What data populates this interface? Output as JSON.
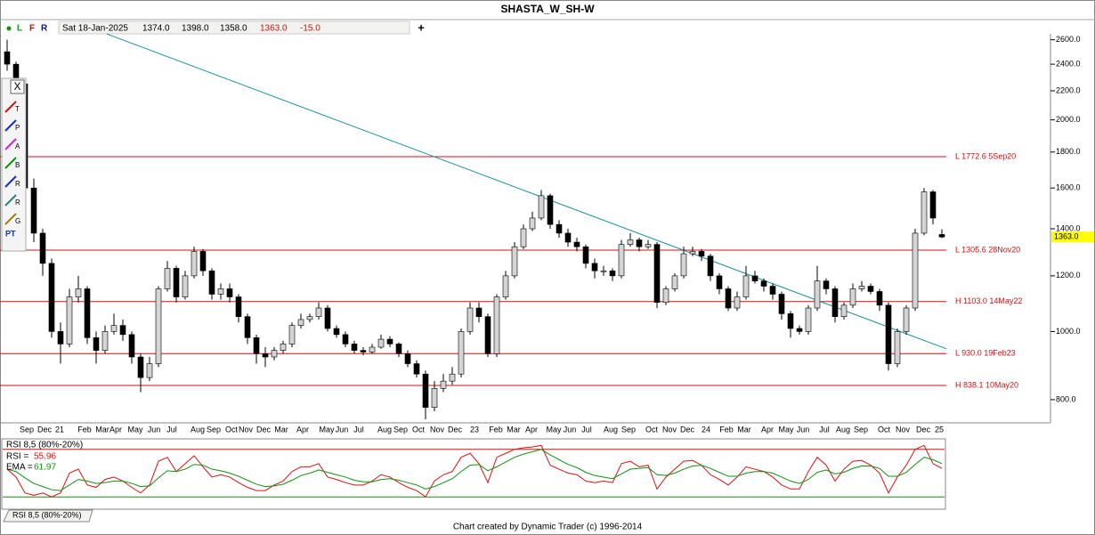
{
  "header": {
    "title": "SHASTA_W_SH-W",
    "buttons": [
      "L",
      "F",
      "R"
    ],
    "plus": "+",
    "info": {
      "date": "Sat 18-Jan-2025",
      "open": "1374.0",
      "high": "1398.0",
      "low": "1358.0",
      "close": "1363.0",
      "change": "-15.0"
    }
  },
  "tools": {
    "close": "X",
    "labels": [
      "T",
      "P",
      "A",
      "B",
      "R",
      "R",
      "G",
      "PT"
    ]
  },
  "chart_data": {
    "type": "candlestick",
    "log_scale": true,
    "xlim": [
      0,
      105
    ],
    "ylim": [
      748,
      2651
    ],
    "yticks": [
      {
        "value": 800,
        "label": "800.0"
      },
      {
        "value": 1000,
        "label": "1000.0"
      },
      {
        "value": 1200,
        "label": "1200.0"
      },
      {
        "value": 1400,
        "label": "1400.0"
      },
      {
        "value": 1600,
        "label": "1600.0"
      },
      {
        "value": 1800,
        "label": "1800.0"
      },
      {
        "value": 2000,
        "label": "2000.0"
      },
      {
        "value": 2200,
        "label": "2200.0"
      },
      {
        "value": 2400,
        "label": "2400.0"
      },
      {
        "value": 2600,
        "label": "2600.0"
      }
    ],
    "xticks": [
      {
        "value": 2.2,
        "label": "Sep"
      },
      {
        "value": 4.2,
        "label": "Dec"
      },
      {
        "value": 5.9,
        "label": "21"
      },
      {
        "value": 8.7,
        "label": "Feb"
      },
      {
        "value": 10.7,
        "label": "Mar"
      },
      {
        "value": 12.2,
        "label": "Apr"
      },
      {
        "value": 14.4,
        "label": "May"
      },
      {
        "value": 16.5,
        "label": "Jun"
      },
      {
        "value": 18.5,
        "label": "Jul"
      },
      {
        "value": 21.4,
        "label": "Aug"
      },
      {
        "value": 23.2,
        "label": "Sep"
      },
      {
        "value": 25.2,
        "label": "Oct"
      },
      {
        "value": 26.8,
        "label": "Nov"
      },
      {
        "value": 28.8,
        "label": "Dec"
      },
      {
        "value": 30.8,
        "label": "Mar"
      },
      {
        "value": 33.2,
        "label": "Apr"
      },
      {
        "value": 35.9,
        "label": "May"
      },
      {
        "value": 37.6,
        "label": "Jun"
      },
      {
        "value": 39.5,
        "label": "Jul"
      },
      {
        "value": 42.4,
        "label": "Aug"
      },
      {
        "value": 44.2,
        "label": "Sep"
      },
      {
        "value": 46.2,
        "label": "Oct"
      },
      {
        "value": 48.3,
        "label": "Nov"
      },
      {
        "value": 50.3,
        "label": "Dec"
      },
      {
        "value": 52.5,
        "label": "23"
      },
      {
        "value": 54.9,
        "label": "Feb"
      },
      {
        "value": 56.9,
        "label": "Mar"
      },
      {
        "value": 58.9,
        "label": "Apr"
      },
      {
        "value": 61.4,
        "label": "May"
      },
      {
        "value": 63.2,
        "label": "Jun"
      },
      {
        "value": 65.1,
        "label": "Jul"
      },
      {
        "value": 67.8,
        "label": "Aug"
      },
      {
        "value": 69.8,
        "label": "Sep"
      },
      {
        "value": 72.4,
        "label": "Oct"
      },
      {
        "value": 74.4,
        "label": "Nov"
      },
      {
        "value": 76.4,
        "label": "Dec"
      },
      {
        "value": 78.5,
        "label": "24"
      },
      {
        "value": 80.8,
        "label": "Feb"
      },
      {
        "value": 82.8,
        "label": "Mar"
      },
      {
        "value": 85.4,
        "label": "Apr"
      },
      {
        "value": 87.5,
        "label": "May"
      },
      {
        "value": 89.4,
        "label": "Jun"
      },
      {
        "value": 91.8,
        "label": "Jul"
      },
      {
        "value": 93.9,
        "label": "Aug"
      },
      {
        "value": 95.9,
        "label": "Sep"
      },
      {
        "value": 98.5,
        "label": "Oct"
      },
      {
        "value": 100.6,
        "label": "Nov"
      },
      {
        "value": 102.9,
        "label": "Dec"
      },
      {
        "value": 104.7,
        "label": "25"
      }
    ],
    "up_color": "#d4d4d4",
    "down_color": "#000000",
    "candles": [
      [
        2500,
        2600,
        2350,
        2400
      ],
      [
        2400,
        2420,
        2200,
        2250
      ],
      [
        2250,
        2260,
        1550,
        1600
      ],
      [
        1600,
        1650,
        1340,
        1380
      ],
      [
        1380,
        1400,
        1200,
        1250
      ],
      [
        1250,
        1270,
        980,
        1000
      ],
      [
        1000,
        1030,
        900,
        960
      ],
      [
        960,
        1150,
        950,
        1120
      ],
      [
        1120,
        1200,
        1100,
        1150
      ],
      [
        1150,
        1160,
        960,
        980
      ],
      [
        980,
        1000,
        900,
        940
      ],
      [
        940,
        1020,
        930,
        1000
      ],
      [
        1000,
        1060,
        990,
        1020
      ],
      [
        1020,
        1040,
        970,
        990
      ],
      [
        990,
        1000,
        900,
        920
      ],
      [
        920,
        930,
        820,
        860
      ],
      [
        860,
        920,
        850,
        900
      ],
      [
        900,
        1160,
        890,
        1150
      ],
      [
        1150,
        1260,
        1140,
        1230
      ],
      [
        1230,
        1240,
        1100,
        1120
      ],
      [
        1120,
        1220,
        1110,
        1200
      ],
      [
        1200,
        1320,
        1190,
        1300
      ],
      [
        1300,
        1310,
        1200,
        1220
      ],
      [
        1220,
        1230,
        1110,
        1130
      ],
      [
        1130,
        1170,
        1110,
        1150
      ],
      [
        1150,
        1170,
        1100,
        1120
      ],
      [
        1120,
        1130,
        1030,
        1050
      ],
      [
        1050,
        1060,
        960,
        980
      ],
      [
        980,
        990,
        900,
        930
      ],
      [
        930,
        950,
        890,
        920
      ],
      [
        920,
        950,
        910,
        940
      ],
      [
        940,
        970,
        930,
        960
      ],
      [
        960,
        1030,
        950,
        1020
      ],
      [
        1020,
        1060,
        1010,
        1040
      ],
      [
        1040,
        1060,
        1030,
        1050
      ],
      [
        1050,
        1100,
        1040,
        1080
      ],
      [
        1080,
        1090,
        1000,
        1010
      ],
      [
        1010,
        1020,
        980,
        990
      ],
      [
        990,
        1000,
        950,
        960
      ],
      [
        960,
        970,
        930,
        940
      ],
      [
        940,
        950,
        925,
        935
      ],
      [
        935,
        960,
        930,
        950
      ],
      [
        950,
        990,
        945,
        975
      ],
      [
        975,
        985,
        950,
        960
      ],
      [
        960,
        965,
        920,
        930
      ],
      [
        930,
        940,
        890,
        900
      ],
      [
        900,
        910,
        860,
        870
      ],
      [
        870,
        880,
        750,
        780
      ],
      [
        780,
        850,
        770,
        830
      ],
      [
        830,
        870,
        820,
        850
      ],
      [
        850,
        890,
        840,
        870
      ],
      [
        870,
        1010,
        860,
        1000
      ],
      [
        1000,
        1100,
        990,
        1080
      ],
      [
        1080,
        1100,
        1030,
        1050
      ],
      [
        1050,
        1060,
        920,
        930
      ],
      [
        930,
        1130,
        920,
        1120
      ],
      [
        1120,
        1220,
        1110,
        1200
      ],
      [
        1200,
        1340,
        1190,
        1320
      ],
      [
        1320,
        1420,
        1310,
        1400
      ],
      [
        1400,
        1480,
        1390,
        1450
      ],
      [
        1450,
        1590,
        1440,
        1560
      ],
      [
        1560,
        1570,
        1400,
        1420
      ],
      [
        1420,
        1440,
        1360,
        1380
      ],
      [
        1380,
        1400,
        1320,
        1340
      ],
      [
        1340,
        1360,
        1300,
        1320
      ],
      [
        1320,
        1330,
        1230,
        1250
      ],
      [
        1250,
        1270,
        1190,
        1220
      ],
      [
        1220,
        1240,
        1200,
        1220
      ],
      [
        1220,
        1230,
        1180,
        1200
      ],
      [
        1200,
        1350,
        1190,
        1330
      ],
      [
        1330,
        1380,
        1320,
        1350
      ],
      [
        1350,
        1360,
        1300,
        1320
      ],
      [
        1320,
        1350,
        1310,
        1330
      ],
      [
        1330,
        1340,
        1080,
        1100
      ],
      [
        1100,
        1160,
        1090,
        1150
      ],
      [
        1150,
        1210,
        1140,
        1200
      ],
      [
        1200,
        1320,
        1190,
        1290
      ],
      [
        1290,
        1320,
        1280,
        1300
      ],
      [
        1300,
        1310,
        1260,
        1280
      ],
      [
        1280,
        1290,
        1180,
        1200
      ],
      [
        1200,
        1210,
        1130,
        1150
      ],
      [
        1150,
        1160,
        1070,
        1080
      ],
      [
        1080,
        1140,
        1070,
        1120
      ],
      [
        1120,
        1240,
        1110,
        1200
      ],
      [
        1200,
        1220,
        1170,
        1180
      ],
      [
        1180,
        1190,
        1140,
        1160
      ],
      [
        1160,
        1170,
        1110,
        1130
      ],
      [
        1130,
        1140,
        1040,
        1060
      ],
      [
        1060,
        1070,
        980,
        1010
      ],
      [
        1010,
        1020,
        990,
        1000
      ],
      [
        1000,
        1090,
        990,
        1080
      ],
      [
        1080,
        1240,
        1070,
        1180
      ],
      [
        1180,
        1190,
        1130,
        1150
      ],
      [
        1150,
        1160,
        1030,
        1050
      ],
      [
        1050,
        1100,
        1040,
        1090
      ],
      [
        1090,
        1170,
        1080,
        1150
      ],
      [
        1150,
        1180,
        1140,
        1160
      ],
      [
        1160,
        1170,
        1130,
        1140
      ],
      [
        1140,
        1150,
        1070,
        1090
      ],
      [
        1090,
        1100,
        880,
        900
      ],
      [
        900,
        1010,
        890,
        1000
      ],
      [
        1000,
        1090,
        990,
        1080
      ],
      [
        1080,
        1400,
        1070,
        1380
      ],
      [
        1380,
        1600,
        1370,
        1580
      ],
      [
        1580,
        1590,
        1420,
        1450
      ],
      [
        1374,
        1398,
        1358,
        1363
      ]
    ],
    "levels": [
      {
        "value": 1772.6,
        "label": "L 1772.6 5Sep20"
      },
      {
        "value": 1305.6,
        "label": "L 1305.6 28Nov20"
      },
      {
        "value": 1103.0,
        "label": "H 1103.0 14May22"
      },
      {
        "value": 930.0,
        "label": "L 930.0 19Feb23"
      },
      {
        "value": 838.1,
        "label": "H 838.1 10May20"
      }
    ],
    "level_color": "#d01010",
    "trendline": {
      "color": "#1a90a0",
      "points": [
        [
          11.2,
          2650
        ],
        [
          105.5,
          945
        ]
      ]
    },
    "price_marker": {
      "value": 1363,
      "label": "1363.0",
      "color": "#ffff00"
    },
    "indicator": {
      "type": "line",
      "title": "RSI 8,5 (80%-20%)",
      "ylim": [
        0,
        100
      ],
      "levels": [
        80,
        20
      ],
      "level_colors": [
        "#d01010",
        "#109010"
      ],
      "series": [
        {
          "name": "RSI =",
          "color": "#e01010",
          "values": [
            55,
            45,
            25,
            22,
            25,
            20,
            25,
            50,
            55,
            35,
            32,
            42,
            45,
            40,
            32,
            25,
            35,
            65,
            70,
            52,
            62,
            72,
            58,
            45,
            48,
            45,
            38,
            32,
            28,
            28,
            35,
            40,
            52,
            58,
            58,
            62,
            45,
            42,
            38,
            35,
            35,
            40,
            48,
            45,
            38,
            32,
            28,
            20,
            40,
            48,
            52,
            70,
            75,
            62,
            38,
            70,
            75,
            80,
            82,
            83,
            85,
            60,
            55,
            50,
            48,
            40,
            38,
            40,
            38,
            62,
            65,
            58,
            60,
            30,
            45,
            55,
            65,
            66,
            60,
            48,
            42,
            35,
            45,
            58,
            55,
            52,
            45,
            35,
            30,
            30,
            52,
            70,
            60,
            40,
            55,
            65,
            66,
            60,
            50,
            25,
            45,
            60,
            80,
            85,
            62,
            55.96
          ]
        },
        {
          "name": "EMA =",
          "color": "#109010",
          "values": [
            55,
            52,
            44,
            37,
            33,
            29,
            28,
            35,
            42,
            40,
            37,
            38,
            40,
            40,
            37,
            33,
            34,
            44,
            53,
            52,
            55,
            61,
            60,
            55,
            53,
            50,
            46,
            41,
            36,
            33,
            34,
            36,
            41,
            47,
            50,
            54,
            51,
            48,
            45,
            41,
            39,
            39,
            42,
            43,
            41,
            38,
            35,
            30,
            33,
            38,
            43,
            52,
            60,
            61,
            53,
            58,
            64,
            70,
            74,
            77,
            80,
            73,
            67,
            61,
            57,
            51,
            47,
            45,
            43,
            49,
            55,
            56,
            57,
            48,
            47,
            50,
            55,
            59,
            60,
            56,
            51,
            46,
            46,
            50,
            52,
            52,
            50,
            45,
            40,
            37,
            42,
            51,
            54,
            49,
            51,
            56,
            59,
            59,
            56,
            46,
            46,
            51,
            61,
            70,
            67,
            61.97
          ]
        }
      ]
    }
  },
  "footer": "Chart created by Dynamic Trader  (c) 1996-2014"
}
